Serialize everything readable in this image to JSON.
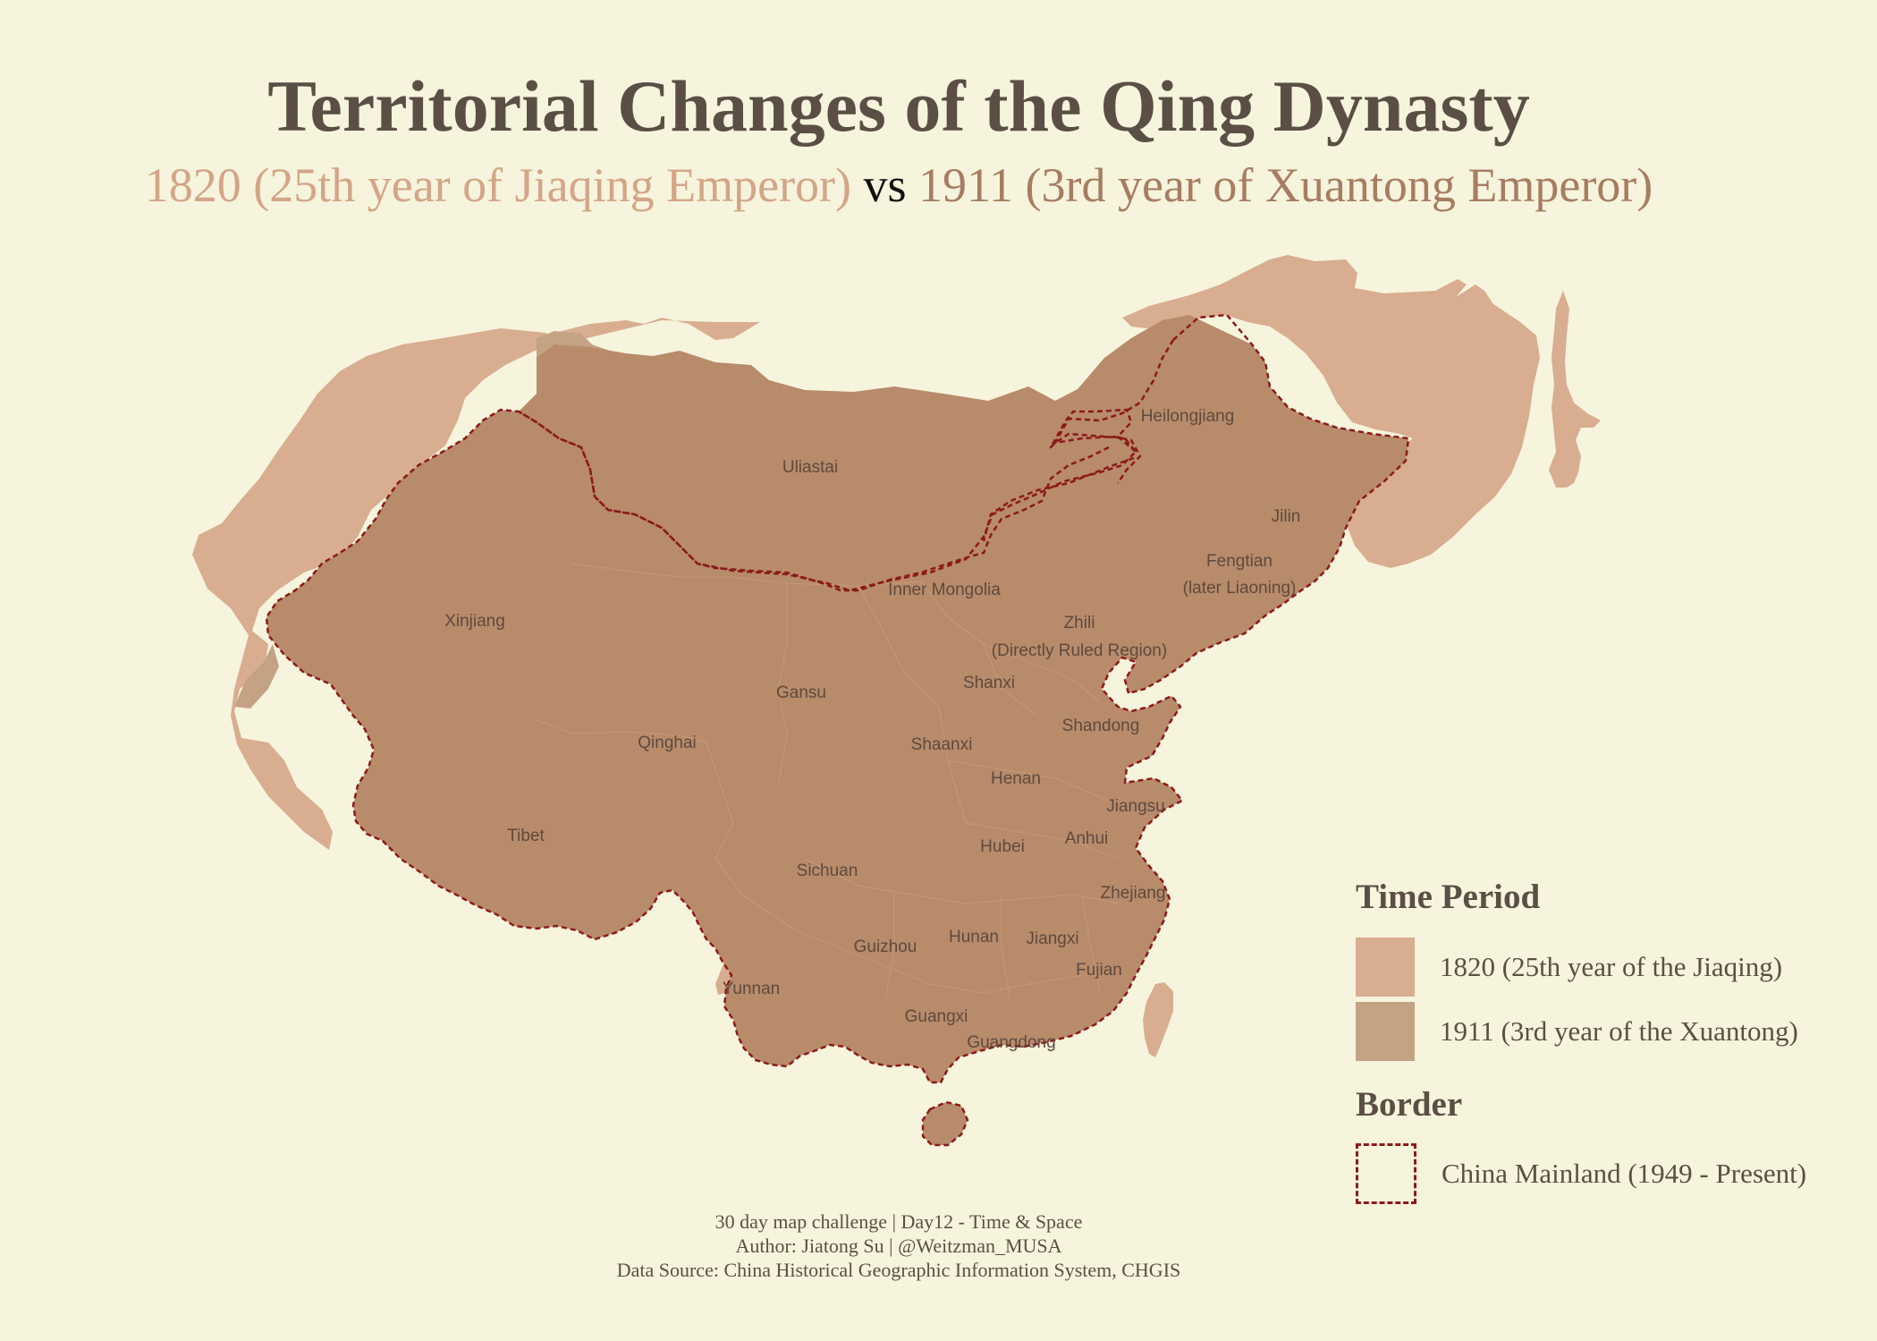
{
  "title": "Territorial Changes of the Qing Dynasty",
  "subtitle": {
    "part_1820": "1820 (25th year of Jiaqing Emperor)",
    "vs": "vs",
    "part_1911": "1911 (3rd year of Xuantong Emperor)"
  },
  "colors": {
    "background": "#f6f4dc",
    "territory_1820": "#d8ad90",
    "territory_1911": "#c4a385",
    "overlap": "#b88b6b",
    "border_mainland": "#8b1a1a",
    "title": "#5b4f45"
  },
  "provinces": [
    "Heilongjiang",
    "Uliastai",
    "Jilin",
    "Fengtian",
    "(later Liaoning)",
    "Inner Mongolia",
    "Xinjiang",
    "Zhili",
    "(Directly Ruled Region)",
    "Gansu",
    "Shanxi",
    "Shandong",
    "Qinghai",
    "Shaanxi",
    "Henan",
    "Jiangsu",
    "Tibet",
    "Anhui",
    "Hubei",
    "Sichuan",
    "Zhejiang",
    "Hunan",
    "Jiangxi",
    "Guizhou",
    "Fujian",
    "Yunnan",
    "Guangxi",
    "Guangdong"
  ],
  "legend": {
    "time_period_title": "Time Period",
    "items": [
      {
        "label": "1820 (25th year of the Jiaqing)",
        "color": "#d8ad90"
      },
      {
        "label": "1911 (3rd year of the Xuantong)",
        "color": "#c4a385"
      }
    ],
    "border_title": "Border",
    "border_item": {
      "label": "China Mainland (1949 - Present)",
      "color": "#8b1a1a"
    }
  },
  "footer": {
    "line1": "30 day map challenge | Day12 - Time & Space",
    "line2": "Author: Jiatong Su | @Weitzman_MUSA",
    "line3": "Data Source: China Historical Geographic Information System, CHGIS"
  }
}
